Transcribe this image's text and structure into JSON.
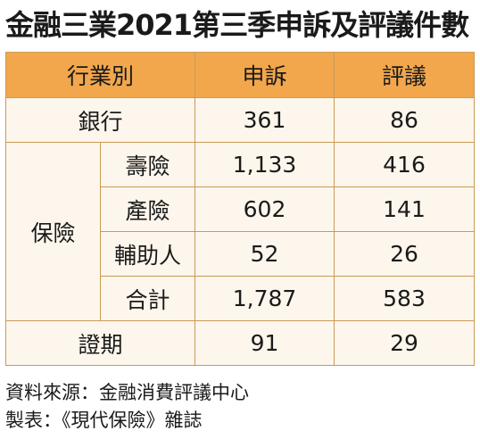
{
  "title": "金融三業2021第三季申訴及評議件數",
  "table": {
    "headers": [
      "行業別",
      "申訴",
      "評議"
    ],
    "bank": {
      "label": "銀行",
      "complaints": "361",
      "disputes": "86"
    },
    "insurance": {
      "label": "保險",
      "rows": [
        {
          "label": "壽險",
          "complaints": "1,133",
          "disputes": "416"
        },
        {
          "label": "產險",
          "complaints": "602",
          "disputes": "141"
        },
        {
          "label": "輔助人",
          "complaints": "52",
          "disputes": "26"
        },
        {
          "label": "合計",
          "complaints": "1,787",
          "disputes": "583"
        }
      ]
    },
    "securities": {
      "label": "證期",
      "complaints": "91",
      "disputes": "29"
    }
  },
  "footer": {
    "source": "資料來源：金融消費評議中心",
    "maker": "製表：《現代保險》雜誌"
  },
  "colors": {
    "header_bg": "#f2a74d",
    "cell_bg": "#fdf6ec",
    "border": "#c99a56"
  }
}
